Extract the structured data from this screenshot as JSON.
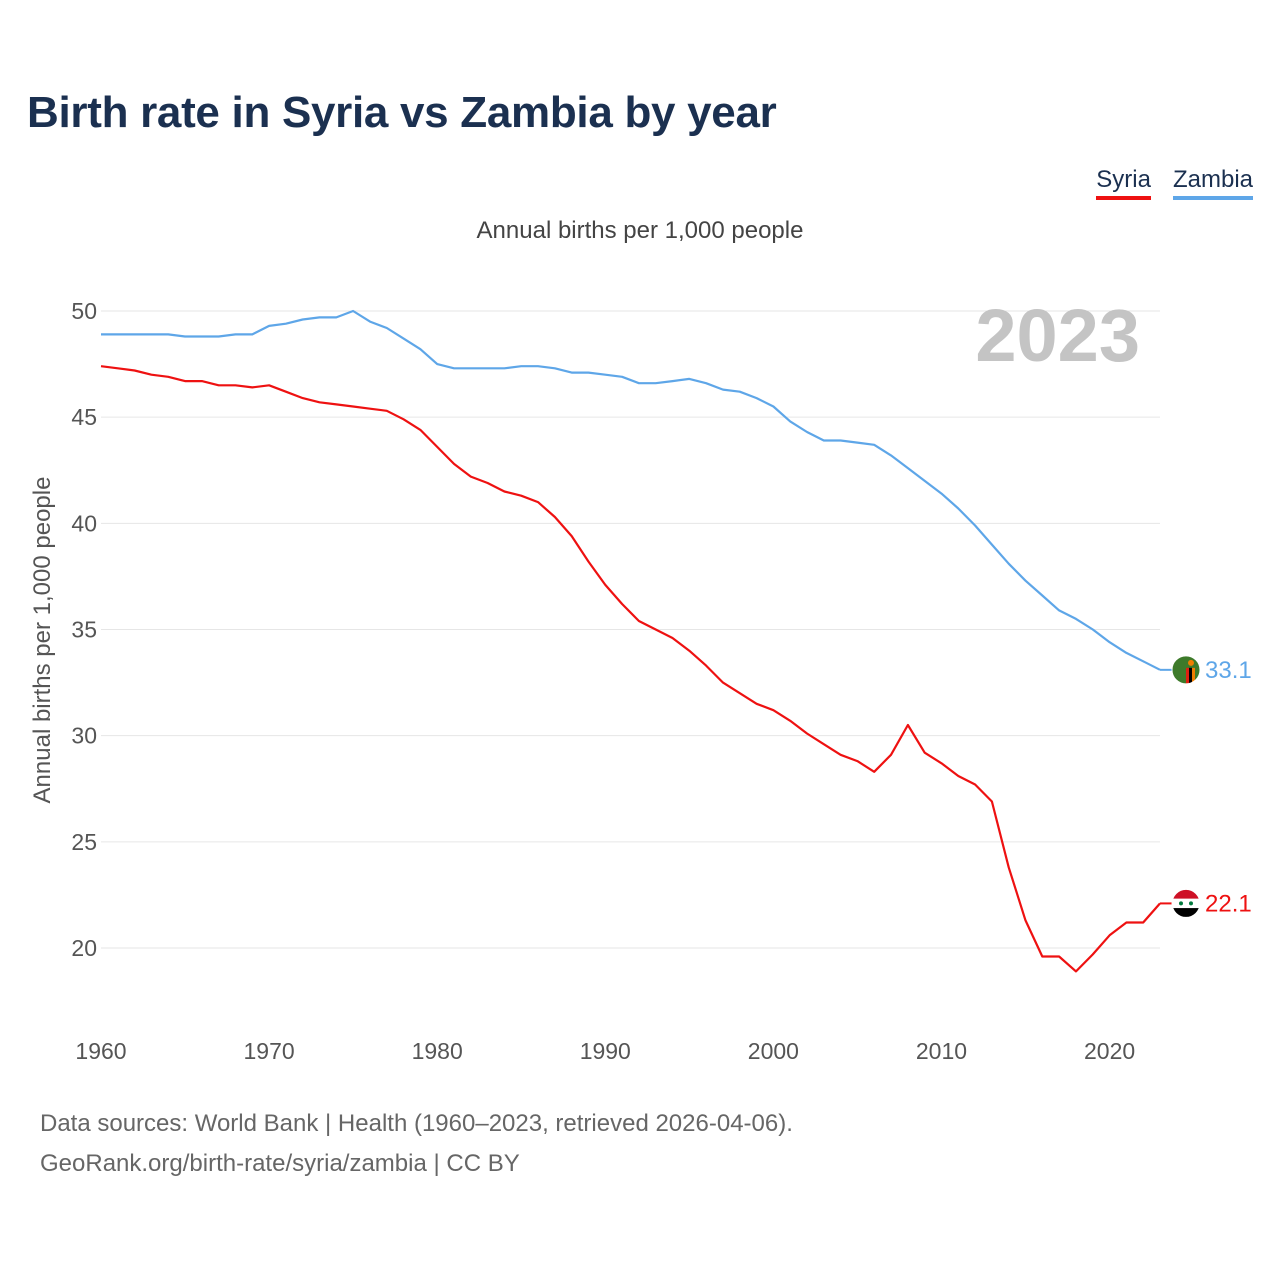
{
  "title": "Birth rate in Syria vs Zambia by year",
  "subtitle": "Annual births per 1,000 people",
  "legend": {
    "syria": "Syria",
    "zambia": "Zambia"
  },
  "year_watermark": "2023",
  "footer": {
    "line1": "Data sources: World Bank | Health (1960–2023, retrieved 2026-04-06).",
    "line2": "GeoRank.org/birth-rate/syria/zambia | CC BY"
  },
  "colors": {
    "syria": "#ee1111",
    "zambia": "#5ea6e8",
    "title": "#1b3050"
  },
  "chart_data": {
    "type": "line",
    "title": "Birth rate in Syria vs Zambia by year",
    "xlabel": "",
    "ylabel": "Annual births per 1,000 people",
    "xlim": [
      1960,
      2023
    ],
    "ylim": [
      17,
      51
    ],
    "yticks": [
      20,
      25,
      30,
      35,
      40,
      45,
      50
    ],
    "xticks": [
      1960,
      1970,
      1980,
      1990,
      2000,
      2010,
      2020
    ],
    "grid": true,
    "legend_position": "top-right",
    "x": [
      1960,
      1961,
      1962,
      1963,
      1964,
      1965,
      1966,
      1967,
      1968,
      1969,
      1970,
      1971,
      1972,
      1973,
      1974,
      1975,
      1976,
      1977,
      1978,
      1979,
      1980,
      1981,
      1982,
      1983,
      1984,
      1985,
      1986,
      1987,
      1988,
      1989,
      1990,
      1991,
      1992,
      1993,
      1994,
      1995,
      1996,
      1997,
      1998,
      1999,
      2000,
      2001,
      2002,
      2003,
      2004,
      2005,
      2006,
      2007,
      2008,
      2009,
      2010,
      2011,
      2012,
      2013,
      2014,
      2015,
      2016,
      2017,
      2018,
      2019,
      2020,
      2021,
      2022,
      2023
    ],
    "series": [
      {
        "name": "Syria",
        "color": "#ee1111",
        "end_label": "22.1",
        "values": [
          47.4,
          47.3,
          47.2,
          47.0,
          46.9,
          46.7,
          46.7,
          46.5,
          46.5,
          46.4,
          46.5,
          46.2,
          45.9,
          45.7,
          45.6,
          45.5,
          45.4,
          45.3,
          44.9,
          44.4,
          43.6,
          42.8,
          42.2,
          41.9,
          41.5,
          41.3,
          41.0,
          40.3,
          39.4,
          38.2,
          37.1,
          36.2,
          35.4,
          35.0,
          34.6,
          34.0,
          33.3,
          32.5,
          32.0,
          31.5,
          31.2,
          30.7,
          30.1,
          29.6,
          29.1,
          28.8,
          28.3,
          29.1,
          30.5,
          29.2,
          28.7,
          28.1,
          27.7,
          26.9,
          23.8,
          21.3,
          19.6,
          19.6,
          18.9,
          19.7,
          20.6,
          21.2,
          21.2,
          22.1
        ]
      },
      {
        "name": "Zambia",
        "color": "#5ea6e8",
        "end_label": "33.1",
        "values": [
          48.9,
          48.9,
          48.9,
          48.9,
          48.9,
          48.8,
          48.8,
          48.8,
          48.9,
          48.9,
          49.3,
          49.4,
          49.6,
          49.7,
          49.7,
          50.0,
          49.5,
          49.2,
          48.7,
          48.2,
          47.5,
          47.3,
          47.3,
          47.3,
          47.3,
          47.4,
          47.4,
          47.3,
          47.1,
          47.1,
          47.0,
          46.9,
          46.6,
          46.6,
          46.7,
          46.8,
          46.6,
          46.3,
          46.2,
          45.9,
          45.5,
          44.8,
          44.3,
          43.9,
          43.9,
          43.8,
          43.7,
          43.2,
          42.6,
          42.0,
          41.4,
          40.7,
          39.9,
          39.0,
          38.1,
          37.3,
          36.6,
          35.9,
          35.5,
          35.0,
          34.4,
          33.9,
          33.5,
          33.1
        ]
      }
    ]
  }
}
